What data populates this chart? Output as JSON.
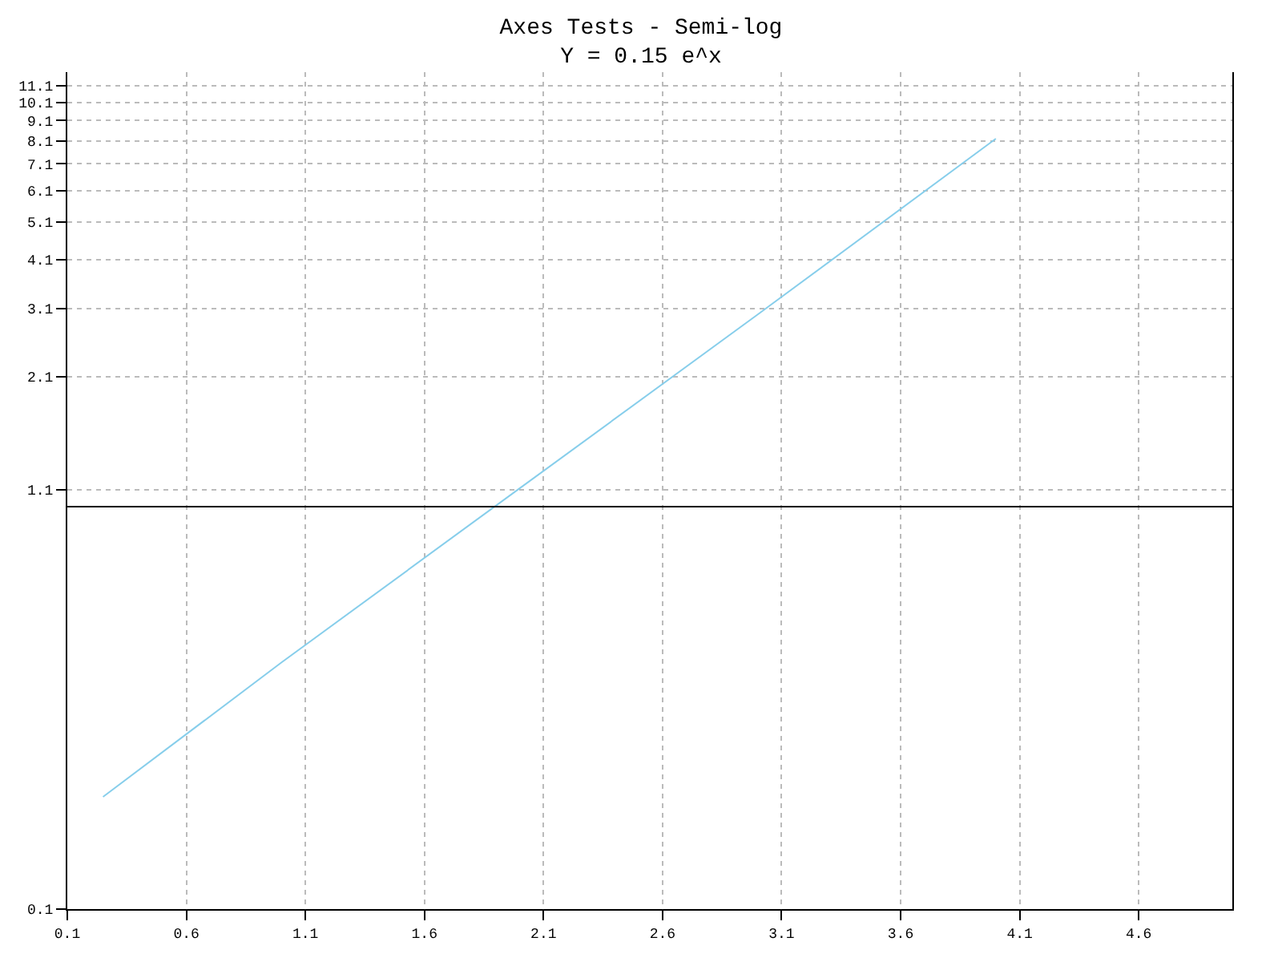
{
  "chart_data": {
    "type": "line",
    "title": "Axes Tests - Semi-log",
    "subtitle": "Y = 0.15 e^x",
    "x": [
      0.25,
      1.0,
      2.0,
      3.0,
      4.0
    ],
    "series": [
      {
        "color": "#87ceeb",
        "values": [
          0.19,
          0.41,
          1.11,
          3.0,
          8.2
        ]
      }
    ],
    "log": "y",
    "grid": true,
    "marker": "none",
    "line_style": "solid",
    "xlim": [
      0.1,
      5.0
    ],
    "xticks": [
      0.1,
      0.6,
      1.1,
      1.6,
      2.1,
      2.6,
      3.1,
      3.6,
      4.1,
      4.6
    ],
    "ylim": [
      0.1,
      12
    ],
    "yticks": [
      0.1,
      1.1,
      2.1,
      3.1,
      4.1,
      5.1,
      6.1,
      7.1,
      8.1,
      9.1,
      10.1,
      11.1
    ],
    "ref_lines": [
      {
        "axis": "y",
        "value": 1,
        "color": "#000000",
        "line_style": "solid"
      }
    ]
  }
}
